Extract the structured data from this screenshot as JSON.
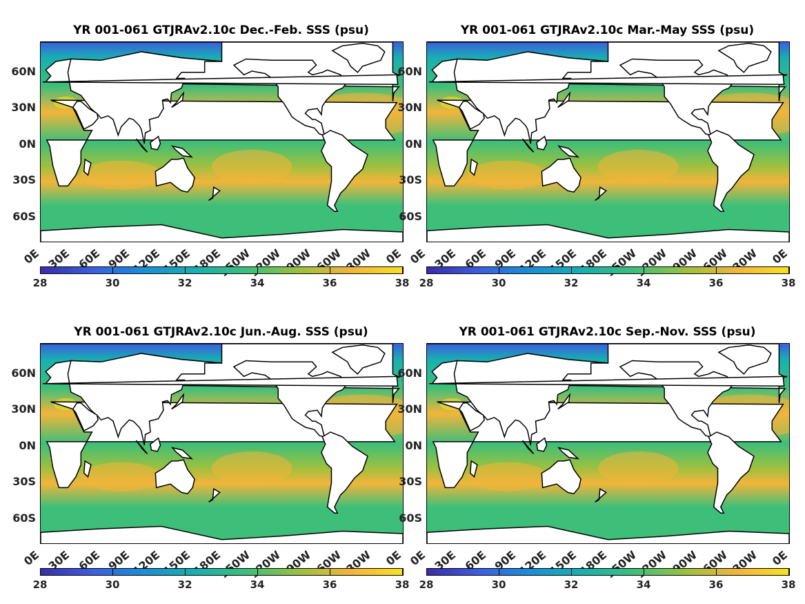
{
  "colormap": [
    "#3a2ca8",
    "#3b5fe0",
    "#1a8fd6",
    "#18b0b0",
    "#3dbf7a",
    "#9cc040",
    "#f2b53a",
    "#f9e21e"
  ],
  "colors": {
    "land": "#ffffff",
    "coast": "#000000"
  },
  "panels": [
    {
      "title": "YR 001-061 GTJRAv2.10c Dec.-Feb. SSS (psu)",
      "y_ticks": [
        "60N",
        "30N",
        "0N",
        "30S",
        "60S"
      ],
      "x_ticks": [
        "0E",
        "30E",
        "60E",
        "90E",
        "120E",
        "150E",
        "180E",
        "150W",
        "120W",
        "90W",
        "60W",
        "30W",
        "0E"
      ],
      "colorbar": {
        "min": 28,
        "max": 38,
        "ticks": [
          "28",
          "30",
          "32",
          "34",
          "36",
          "38"
        ]
      }
    },
    {
      "title": "YR 001-061 GTJRAv2.10c Mar.-May SSS (psu)",
      "y_ticks": [
        "60N",
        "30N",
        "0N",
        "30S",
        "60S"
      ],
      "x_ticks": [
        "0E",
        "30E",
        "60E",
        "90E",
        "120E",
        "150E",
        "180E",
        "150W",
        "120W",
        "90W",
        "60W",
        "30W",
        "0E"
      ],
      "colorbar": {
        "min": 28,
        "max": 38,
        "ticks": [
          "28",
          "30",
          "32",
          "34",
          "36",
          "38"
        ]
      }
    },
    {
      "title": "YR 001-061 GTJRAv2.10c Jun.-Aug. SSS (psu)",
      "y_ticks": [
        "60N",
        "30N",
        "0N",
        "30S",
        "60S"
      ],
      "x_ticks": [
        "0E",
        "30E",
        "60E",
        "90E",
        "120E",
        "150E",
        "180E",
        "150W",
        "120W",
        "90W",
        "60W",
        "30W",
        "0E"
      ],
      "colorbar": {
        "min": 28,
        "max": 38,
        "ticks": [
          "28",
          "30",
          "32",
          "34",
          "36",
          "38"
        ]
      }
    },
    {
      "title": "YR 001-061 GTJRAv2.10c Sep.-Nov. SSS (psu)",
      "y_ticks": [
        "60N",
        "30N",
        "0N",
        "30S",
        "60S"
      ],
      "x_ticks": [
        "0E",
        "30E",
        "60E",
        "90E",
        "120E",
        "150E",
        "180E",
        "150W",
        "120W",
        "90W",
        "60W",
        "30W",
        "0E"
      ],
      "colorbar": {
        "min": 28,
        "max": 38,
        "ticks": [
          "28",
          "30",
          "32",
          "34",
          "36",
          "38"
        ]
      }
    }
  ]
}
